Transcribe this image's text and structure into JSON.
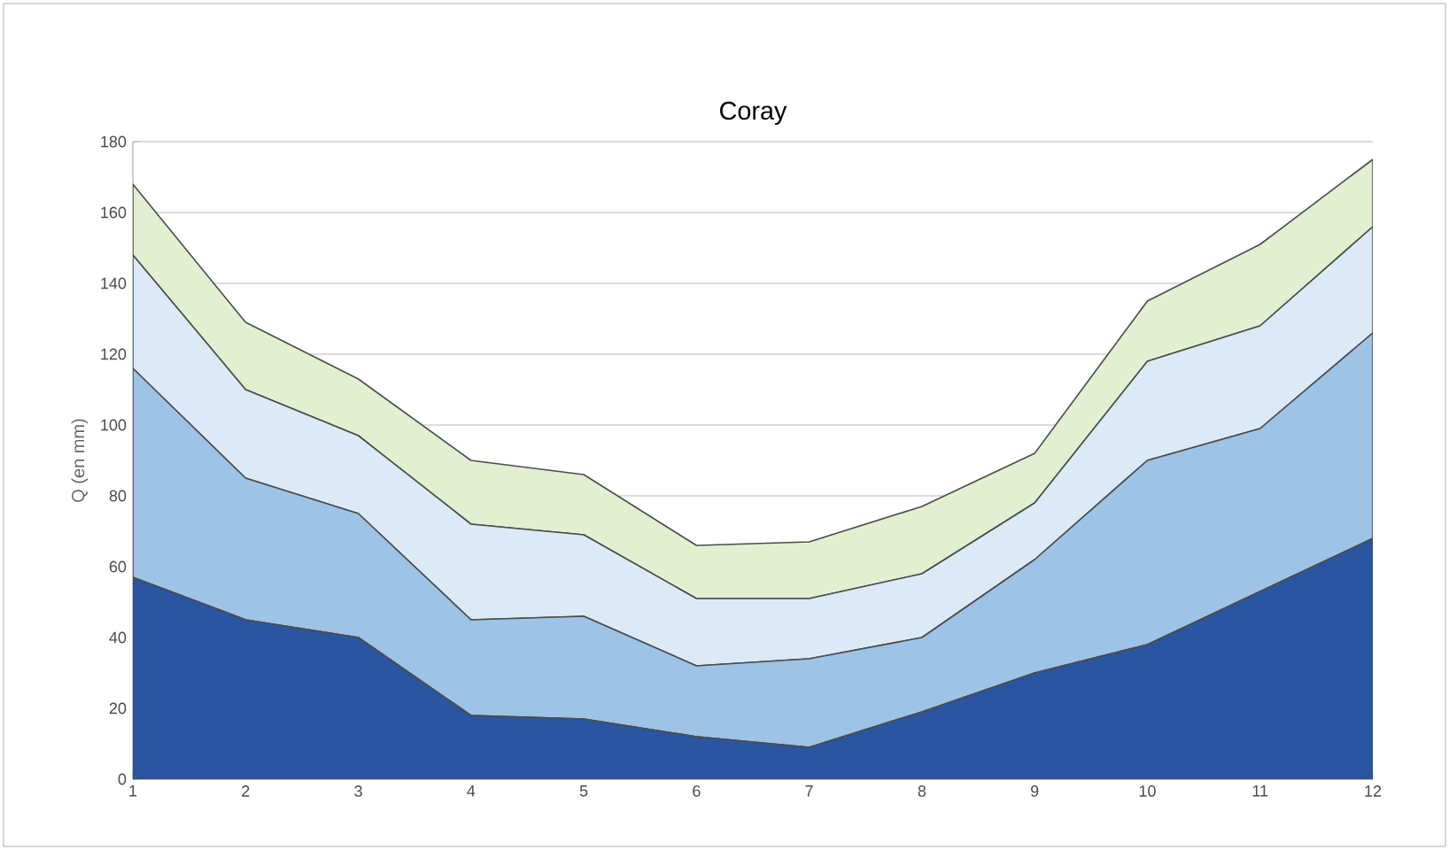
{
  "chart_data": {
    "type": "area",
    "title": "Coray",
    "ylabel": "Q (en mm)",
    "categories": [
      "1",
      "2",
      "3",
      "4",
      "5",
      "6",
      "7",
      "8",
      "9",
      "10",
      "11",
      "12"
    ],
    "stacked": true,
    "series": [
      {
        "color": "#2a55a0",
        "values": [
          57,
          45,
          40,
          18,
          17,
          12,
          9,
          19,
          30,
          38,
          53,
          68
        ]
      },
      {
        "color": "#9dc3e6",
        "values": [
          59,
          40,
          35,
          27,
          29,
          20,
          25,
          21,
          32,
          52,
          46,
          58
        ]
      },
      {
        "color": "#dce9f7",
        "values": [
          32,
          25,
          22,
          27,
          23,
          19,
          17,
          18,
          16,
          28,
          29,
          30
        ]
      },
      {
        "color": "#e2efd0",
        "values": [
          20,
          19,
          16,
          18,
          17,
          15,
          16,
          19,
          14,
          17,
          23,
          19
        ]
      }
    ],
    "ylim": [
      0,
      180
    ],
    "yticks": [
      0,
      20,
      40,
      60,
      80,
      100,
      120,
      140,
      160,
      180
    ],
    "grid": "y"
  }
}
